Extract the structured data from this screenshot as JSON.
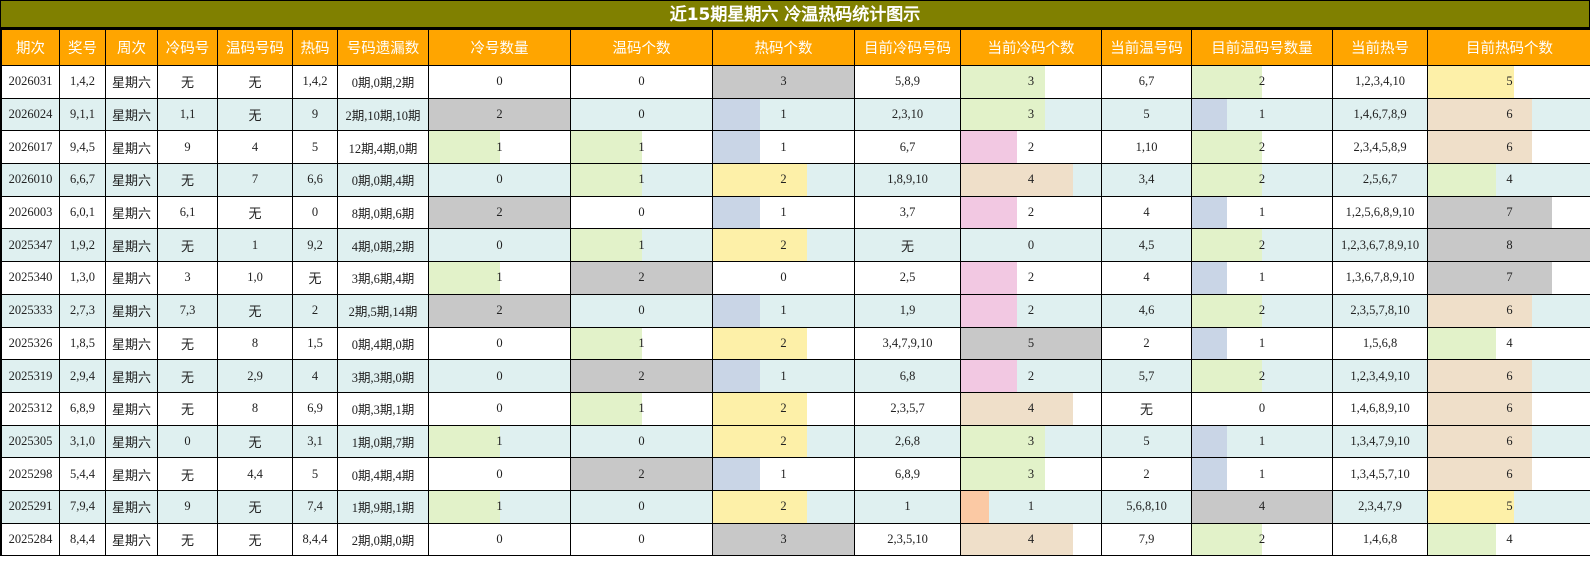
{
  "title": "近15期星期六 冷温热码统计图示",
  "headers": [
    "期次",
    "奖号",
    "周次",
    "冷码号",
    "温码号码",
    "热码",
    "号码遗漏数",
    "冷号数量",
    "温码个数",
    "热码个数",
    "目前冷码号码",
    "当前冷码个数",
    "当前温号码",
    "目前温码号数量",
    "当前热号",
    "目前热码个数"
  ],
  "colors": {
    "title_bg": "#808000",
    "header_bg": "#ffa500",
    "alt_row_bg": "#dff0f0",
    "bar_gray": "#c8c8c8",
    "bar_green": "#e2f2c9",
    "bar_blue": "#c9d5e6",
    "bar_yellow": "#fdf0a8",
    "bar_tan": "#efdfc9",
    "bar_pink": "#f2c8e2",
    "bar_orange": "#fbc9a4"
  },
  "rows": [
    {
      "period": "2026031",
      "draw": "1,4,2",
      "weekday": "星期六",
      "cold": "无",
      "warm": "无",
      "hot": "1,4,2",
      "miss": "0期,0期,2期",
      "cold_count": "0",
      "warm_count": "0",
      "hot_count": "3",
      "cur_cold": "5,8,9",
      "cur_cold_count": "3",
      "cur_warm": "6,7",
      "cur_warm_count": "2",
      "cur_hot": "1,2,3,4,10",
      "cur_hot_count": "5"
    },
    {
      "period": "2026024",
      "draw": "9,1,1",
      "weekday": "星期六",
      "cold": "1,1",
      "warm": "无",
      "hot": "9",
      "miss": "2期,10期,10期",
      "cold_count": "2",
      "warm_count": "0",
      "hot_count": "1",
      "cur_cold": "2,3,10",
      "cur_cold_count": "3",
      "cur_warm": "5",
      "cur_warm_count": "1",
      "cur_hot": "1,4,6,7,8,9",
      "cur_hot_count": "6"
    },
    {
      "period": "2026017",
      "draw": "9,4,5",
      "weekday": "星期六",
      "cold": "9",
      "warm": "4",
      "hot": "5",
      "miss": "12期,4期,0期",
      "cold_count": "1",
      "warm_count": "1",
      "hot_count": "1",
      "cur_cold": "6,7",
      "cur_cold_count": "2",
      "cur_warm": "1,10",
      "cur_warm_count": "2",
      "cur_hot": "2,3,4,5,8,9",
      "cur_hot_count": "6"
    },
    {
      "period": "2026010",
      "draw": "6,6,7",
      "weekday": "星期六",
      "cold": "无",
      "warm": "7",
      "hot": "6,6",
      "miss": "0期,0期,4期",
      "cold_count": "0",
      "warm_count": "1",
      "hot_count": "2",
      "cur_cold": "1,8,9,10",
      "cur_cold_count": "4",
      "cur_warm": "3,4",
      "cur_warm_count": "2",
      "cur_hot": "2,5,6,7",
      "cur_hot_count": "4"
    },
    {
      "period": "2026003",
      "draw": "6,0,1",
      "weekday": "星期六",
      "cold": "6,1",
      "warm": "无",
      "hot": "0",
      "miss": "8期,0期,6期",
      "cold_count": "2",
      "warm_count": "0",
      "hot_count": "1",
      "cur_cold": "3,7",
      "cur_cold_count": "2",
      "cur_warm": "4",
      "cur_warm_count": "1",
      "cur_hot": "1,2,5,6,8,9,10",
      "cur_hot_count": "7"
    },
    {
      "period": "2025347",
      "draw": "1,9,2",
      "weekday": "星期六",
      "cold": "无",
      "warm": "1",
      "hot": "9,2",
      "miss": "4期,0期,2期",
      "cold_count": "0",
      "warm_count": "1",
      "hot_count": "2",
      "cur_cold": "无",
      "cur_cold_count": "0",
      "cur_warm": "4,5",
      "cur_warm_count": "2",
      "cur_hot": "1,2,3,6,7,8,9,10",
      "cur_hot_count": "8"
    },
    {
      "period": "2025340",
      "draw": "1,3,0",
      "weekday": "星期六",
      "cold": "3",
      "warm": "1,0",
      "hot": "无",
      "miss": "3期,6期,4期",
      "cold_count": "1",
      "warm_count": "2",
      "hot_count": "0",
      "cur_cold": "2,5",
      "cur_cold_count": "2",
      "cur_warm": "4",
      "cur_warm_count": "1",
      "cur_hot": "1,3,6,7,8,9,10",
      "cur_hot_count": "7"
    },
    {
      "period": "2025333",
      "draw": "2,7,3",
      "weekday": "星期六",
      "cold": "7,3",
      "warm": "无",
      "hot": "2",
      "miss": "2期,5期,14期",
      "cold_count": "2",
      "warm_count": "0",
      "hot_count": "1",
      "cur_cold": "1,9",
      "cur_cold_count": "2",
      "cur_warm": "4,6",
      "cur_warm_count": "2",
      "cur_hot": "2,3,5,7,8,10",
      "cur_hot_count": "6"
    },
    {
      "period": "2025326",
      "draw": "1,8,5",
      "weekday": "星期六",
      "cold": "无",
      "warm": "8",
      "hot": "1,5",
      "miss": "0期,4期,0期",
      "cold_count": "0",
      "warm_count": "1",
      "hot_count": "2",
      "cur_cold": "3,4,7,9,10",
      "cur_cold_count": "5",
      "cur_warm": "2",
      "cur_warm_count": "1",
      "cur_hot": "1,5,6,8",
      "cur_hot_count": "4"
    },
    {
      "period": "2025319",
      "draw": "2,9,4",
      "weekday": "星期六",
      "cold": "无",
      "warm": "2,9",
      "hot": "4",
      "miss": "3期,3期,0期",
      "cold_count": "0",
      "warm_count": "2",
      "hot_count": "1",
      "cur_cold": "6,8",
      "cur_cold_count": "2",
      "cur_warm": "5,7",
      "cur_warm_count": "2",
      "cur_hot": "1,2,3,4,9,10",
      "cur_hot_count": "6"
    },
    {
      "period": "2025312",
      "draw": "6,8,9",
      "weekday": "星期六",
      "cold": "无",
      "warm": "8",
      "hot": "6,9",
      "miss": "0期,3期,1期",
      "cold_count": "0",
      "warm_count": "1",
      "hot_count": "2",
      "cur_cold": "2,3,5,7",
      "cur_cold_count": "4",
      "cur_warm": "无",
      "cur_warm_count": "0",
      "cur_hot": "1,4,6,8,9,10",
      "cur_hot_count": "6"
    },
    {
      "period": "2025305",
      "draw": "3,1,0",
      "weekday": "星期六",
      "cold": "0",
      "warm": "无",
      "hot": "3,1",
      "miss": "1期,0期,7期",
      "cold_count": "1",
      "warm_count": "0",
      "hot_count": "2",
      "cur_cold": "2,6,8",
      "cur_cold_count": "3",
      "cur_warm": "5",
      "cur_warm_count": "1",
      "cur_hot": "1,3,4,7,9,10",
      "cur_hot_count": "6"
    },
    {
      "period": "2025298",
      "draw": "5,4,4",
      "weekday": "星期六",
      "cold": "无",
      "warm": "4,4",
      "hot": "5",
      "miss": "0期,4期,4期",
      "cold_count": "0",
      "warm_count": "2",
      "hot_count": "1",
      "cur_cold": "6,8,9",
      "cur_cold_count": "3",
      "cur_warm": "2",
      "cur_warm_count": "1",
      "cur_hot": "1,3,4,5,7,10",
      "cur_hot_count": "6"
    },
    {
      "period": "2025291",
      "draw": "7,9,4",
      "weekday": "星期六",
      "cold": "9",
      "warm": "无",
      "hot": "7,4",
      "miss": "1期,9期,1期",
      "cold_count": "1",
      "warm_count": "0",
      "hot_count": "2",
      "cur_cold": "1",
      "cur_cold_count": "1",
      "cur_warm": "5,6,8,10",
      "cur_warm_count": "4",
      "cur_hot": "2,3,4,7,9",
      "cur_hot_count": "5"
    },
    {
      "period": "2025284",
      "draw": "8,4,4",
      "weekday": "星期六",
      "cold": "无",
      "warm": "无",
      "hot": "8,4,4",
      "miss": "2期,0期,0期",
      "cold_count": "0",
      "warm_count": "0",
      "hot_count": "3",
      "cur_cold": "2,3,5,10",
      "cur_cold_count": "4",
      "cur_warm": "7,9",
      "cur_warm_count": "2",
      "cur_hot": "1,4,6,8",
      "cur_hot_count": "4"
    }
  ],
  "chart_data": {
    "type": "table",
    "title": "近15期星期六 冷温热码统计图示",
    "columns": [
      "期次",
      "奖号",
      "周次",
      "冷码号",
      "温码号码",
      "热码",
      "号码遗漏数",
      "冷号数量",
      "温码个数",
      "热码个数",
      "目前冷码号码",
      "当前冷码个数",
      "当前温号码",
      "目前温码号数量",
      "当前热号",
      "目前热码个数"
    ],
    "categories": [
      "2026031",
      "2026024",
      "2026017",
      "2026010",
      "2026003",
      "2025347",
      "2025340",
      "2025333",
      "2025326",
      "2025319",
      "2025312",
      "2025305",
      "2025298",
      "2025291",
      "2025284"
    ],
    "series": [
      {
        "name": "冷号数量",
        "values": [
          0,
          2,
          1,
          0,
          2,
          0,
          1,
          2,
          0,
          0,
          0,
          1,
          0,
          1,
          0
        ]
      },
      {
        "name": "温码个数",
        "values": [
          0,
          0,
          1,
          1,
          0,
          1,
          2,
          0,
          1,
          2,
          1,
          0,
          2,
          0,
          0
        ]
      },
      {
        "name": "热码个数",
        "values": [
          3,
          1,
          1,
          2,
          1,
          2,
          0,
          1,
          2,
          1,
          2,
          2,
          1,
          2,
          3
        ]
      },
      {
        "name": "当前冷码个数",
        "values": [
          3,
          3,
          2,
          4,
          2,
          0,
          2,
          2,
          5,
          2,
          4,
          3,
          3,
          1,
          4
        ]
      },
      {
        "name": "目前温码号数量",
        "values": [
          2,
          1,
          2,
          2,
          1,
          2,
          1,
          2,
          1,
          2,
          0,
          1,
          1,
          4,
          2
        ]
      },
      {
        "name": "目前热码个数",
        "values": [
          5,
          6,
          6,
          4,
          7,
          8,
          7,
          6,
          4,
          6,
          6,
          6,
          6,
          5,
          4
        ]
      }
    ]
  }
}
